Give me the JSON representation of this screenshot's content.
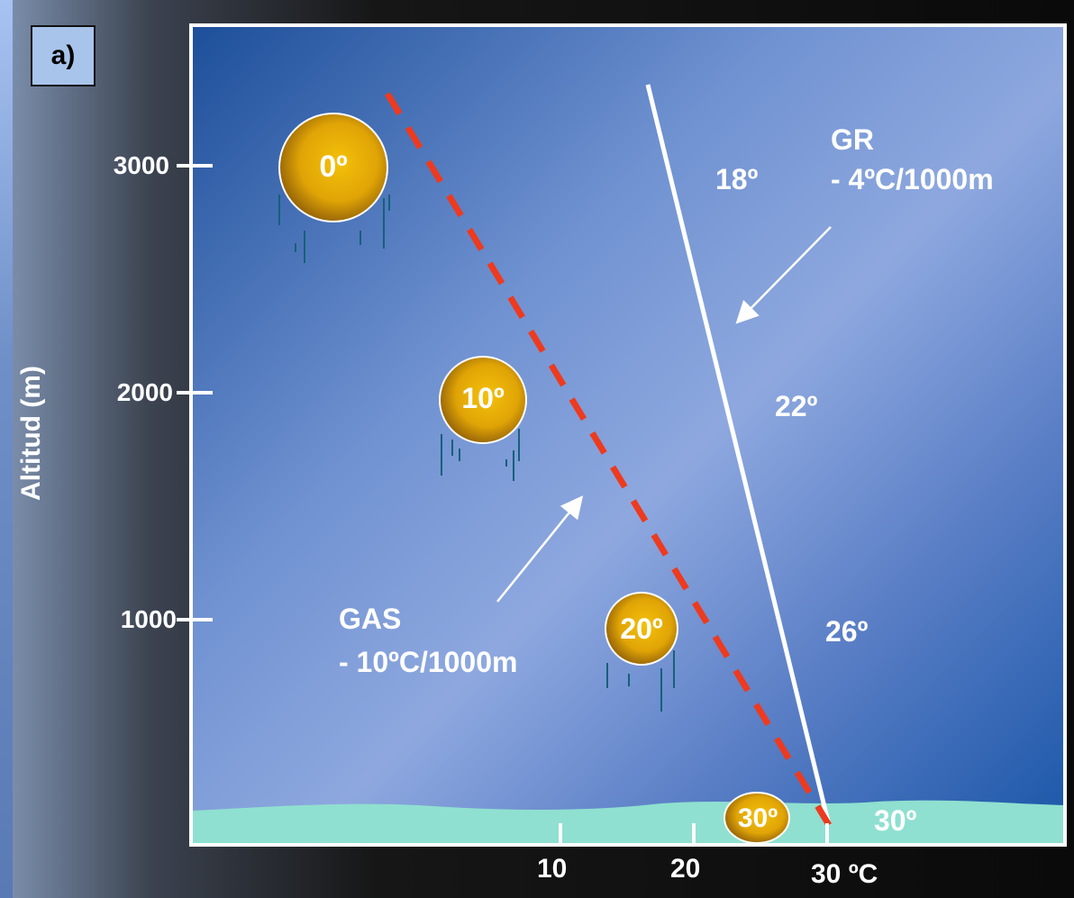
{
  "panel_label": "a)",
  "y_axis": {
    "title": "Altitud  (m)",
    "ticks": [
      "3000",
      "2000",
      "1000"
    ]
  },
  "x_axis": {
    "ticks": [
      "10",
      "20",
      "30 ºC"
    ]
  },
  "gr": {
    "name": "GR",
    "rate": "- 4ºC/1000m",
    "temps": [
      "18º",
      "22º",
      "26º",
      "30º"
    ]
  },
  "gas": {
    "name": "GAS",
    "rate": "- 10ºC/1000m"
  },
  "parcels": [
    "0º",
    "10º",
    "20º",
    "30º"
  ],
  "colors": {
    "gas_line": "#ee3a1e",
    "gr_line": "#ffffff",
    "ground": "#8fe0d0",
    "parcel": "#e2a308"
  }
}
